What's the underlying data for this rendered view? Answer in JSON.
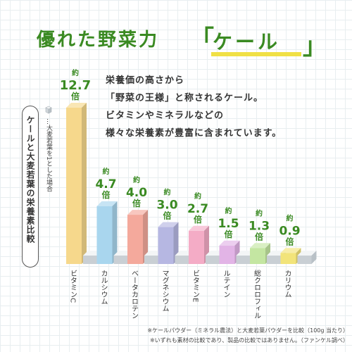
{
  "title": {
    "main": "優れた野菜力",
    "bracket_open": "「",
    "kale": "ケール",
    "bracket_close": "」"
  },
  "description": [
    "栄養価の高さから",
    "「野菜の王様」と称されるケール。",
    "ビタミンやミネラルなどの",
    "様々な栄養素が豊富に含まれています。"
  ],
  "legend": "ケールと大麦若葉の栄養素比較",
  "note": "…大麦若葉を1とした場合",
  "value_prefix": "約",
  "value_suffix": "倍",
  "chart_data": {
    "type": "bar",
    "categories": [
      "ビタミンC",
      "カルシウム",
      "ベータカロテン",
      "マグネシウム",
      "ビタミンE",
      "ルテイン",
      "総クロロフィル",
      "カリウム"
    ],
    "series": [
      {
        "name": "ケール",
        "values": [
          12.7,
          4.7,
          4.0,
          3.0,
          2.7,
          1.5,
          1.3,
          0.9
        ]
      },
      {
        "name": "大麦若葉",
        "values": [
          1,
          1,
          1,
          1,
          1,
          1,
          1,
          1
        ]
      }
    ],
    "value_labels": [
      "12.7",
      "4.7",
      "4.0",
      "3.0",
      "2.7",
      "1.5",
      "1.3",
      "0.9"
    ],
    "colors": [
      "#f6d88c",
      "#a9d6ee",
      "#f4a99c",
      "#b6b7e2",
      "#f4acc6",
      "#e2b4e6",
      "#c4e6a2",
      "#f2e47a"
    ],
    "baseline_color": "#c9cfd4",
    "label_color": "#3a8a22"
  },
  "footnotes": [
    "※ケールパウダー（ミネラル農法）と大麦若葉パウダーを比較（100g 当たり）",
    "※いずれも素材の比較であり、製品の比較ではありません。（ファンケル調べ）"
  ]
}
